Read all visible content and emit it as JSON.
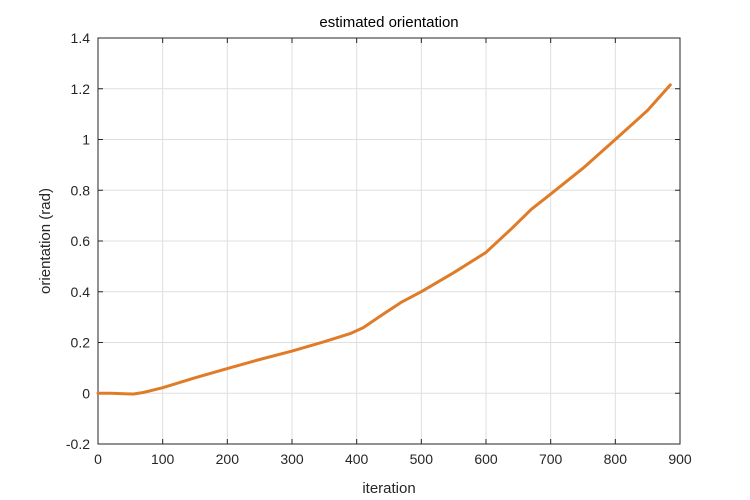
{
  "chart_data": {
    "type": "line",
    "title": "estimated orientation",
    "xlabel": "iteration",
    "ylabel": "orientation (rad)",
    "xlim": [
      0,
      900
    ],
    "ylim": [
      -0.2,
      1.4
    ],
    "xticks": [
      0,
      100,
      200,
      300,
      400,
      500,
      600,
      700,
      800,
      900
    ],
    "yticks": [
      -0.2,
      0,
      0.2,
      0.4,
      0.6,
      0.8,
      1,
      1.2,
      1.4
    ],
    "xtick_labels": [
      "0",
      "100",
      "200",
      "300",
      "400",
      "500",
      "600",
      "700",
      "800",
      "900"
    ],
    "ytick_labels": [
      "-0.2",
      "0",
      "0.2",
      "0.4",
      "0.6",
      "0.8",
      "1",
      "1.2",
      "1.4"
    ],
    "grid": true,
    "series": [
      {
        "color": "#E07B28",
        "x": [
          0,
          20,
          40,
          55,
          70,
          100,
          150,
          200,
          250,
          300,
          350,
          390,
          410,
          440,
          470,
          500,
          550,
          600,
          640,
          670,
          700,
          750,
          800,
          850,
          885
        ],
        "y": [
          0.0,
          0.0,
          -0.002,
          -0.003,
          0.003,
          0.022,
          0.061,
          0.097,
          0.133,
          0.166,
          0.203,
          0.235,
          0.258,
          0.31,
          0.36,
          0.4,
          0.475,
          0.555,
          0.65,
          0.725,
          0.785,
          0.887,
          1.0,
          1.115,
          1.215
        ]
      }
    ]
  }
}
